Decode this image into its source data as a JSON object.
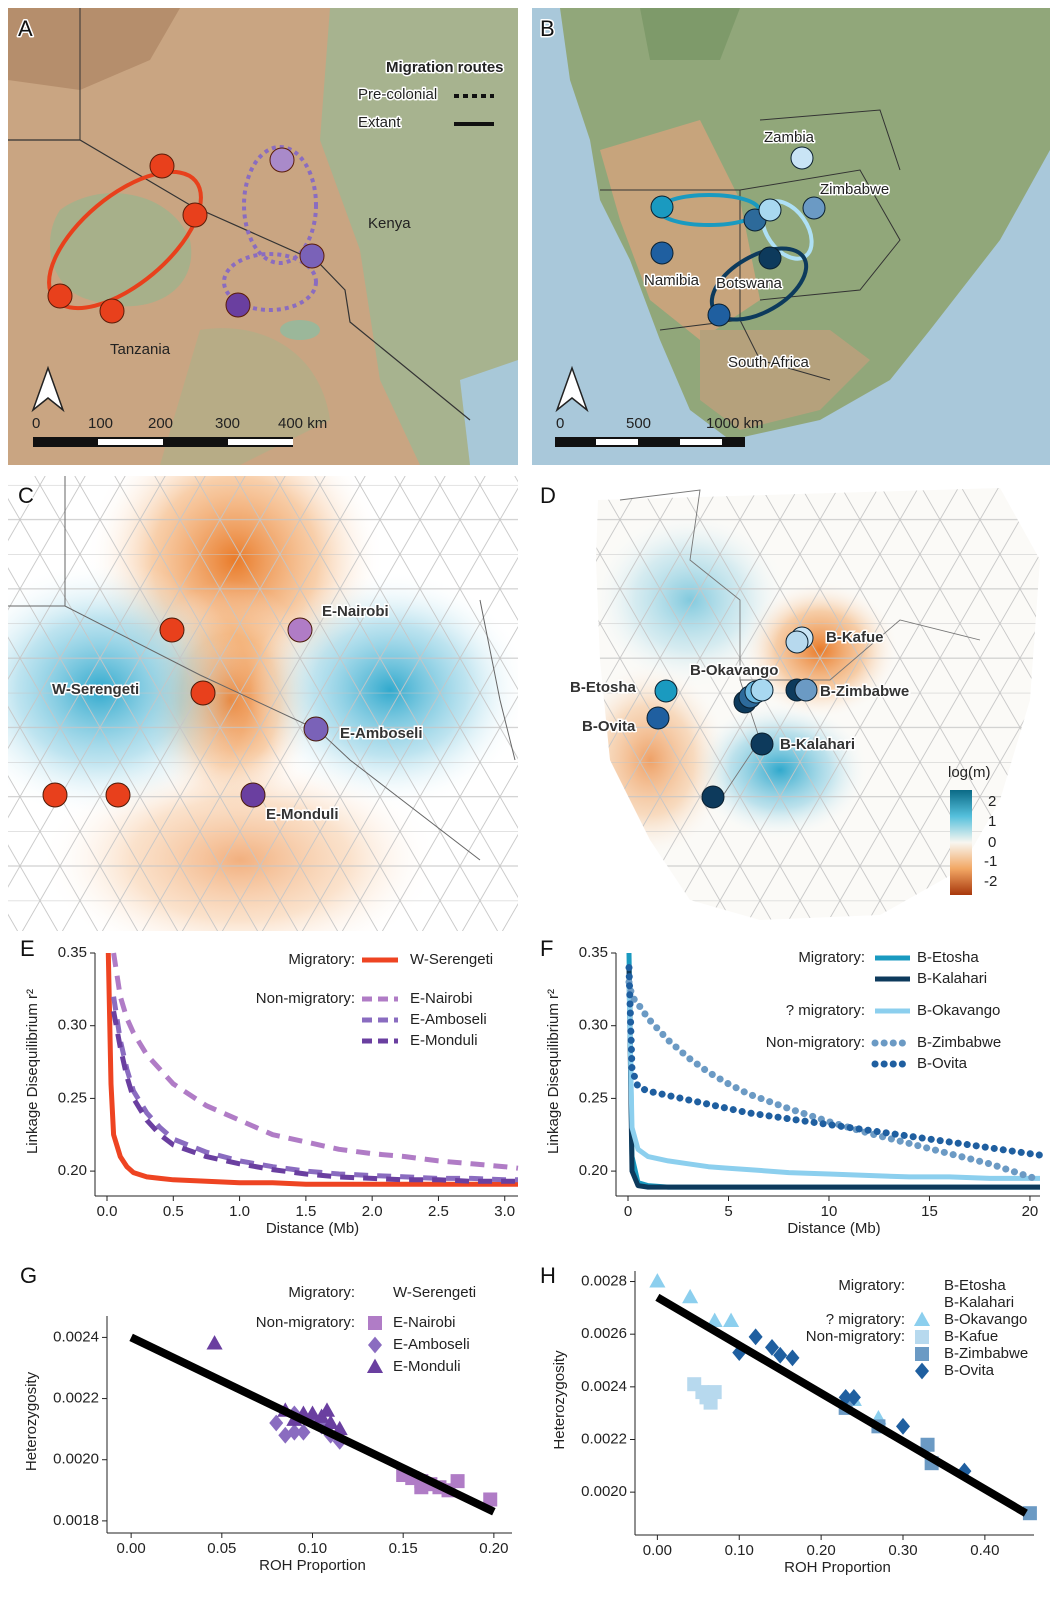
{
  "panel_labels": [
    "A",
    "B",
    "C",
    "D",
    "E",
    "F",
    "G",
    "H"
  ],
  "map_a": {
    "legend_title": "Migration routes",
    "legend_items": [
      "Pre-colonial",
      "Extant"
    ],
    "places": [
      "Kenya",
      "Tanzania"
    ],
    "scale_labels": [
      "0",
      "100",
      "200",
      "300",
      "400 km"
    ]
  },
  "map_b": {
    "places": [
      "Zambia",
      "Zimbabwe",
      "Namibia",
      "Botswana",
      "South Africa"
    ],
    "scale_labels": [
      "0",
      "500",
      "1000 km"
    ]
  },
  "map_c": {
    "sites": [
      "E-Nairobi",
      "W-Serengeti",
      "E-Amboseli",
      "E-Monduli"
    ]
  },
  "map_d": {
    "sites": [
      "B-Kafue",
      "B-Okavango",
      "B-Zimbabwe",
      "B-Etosha",
      "B-Ovita",
      "B-Kalahari"
    ],
    "legend_title": "log(m)",
    "legend_ticks": [
      "2",
      "1",
      "0",
      "-1",
      "-2"
    ]
  },
  "chart_data": [
    {
      "type": "line",
      "xlabel": "Distance (Mb)",
      "ylabel": "Linkage Disequilibrium r²",
      "x": [
        0.01,
        0.03,
        0.05,
        0.1,
        0.15,
        0.2,
        0.3,
        0.4,
        0.5,
        0.75,
        1.0,
        1.25,
        1.5,
        1.75,
        2.0,
        2.25,
        2.5,
        2.75,
        3.0,
        3.1
      ],
      "xlim": [
        0,
        3.1
      ],
      "ylim": [
        0.187,
        0.35
      ],
      "xticks": [
        {
          "value": 0,
          "label": "0.0"
        },
        0.5,
        {
          "value": 1,
          "label": "1.0"
        },
        1.5,
        {
          "value": 2,
          "label": "2.0"
        },
        2.5,
        {
          "value": 3,
          "label": "3.0"
        }
      ],
      "yticks": [
        {
          "value": 0.2,
          "label": "0.20"
        },
        0.25,
        {
          "value": 0.3,
          "label": "0.30"
        },
        0.35
      ],
      "series": [
        {
          "name": "W-Serengeti",
          "group": "Migratory:",
          "color": "#ee4422",
          "linestyle": "solid",
          "values": [
            0.35,
            0.26,
            0.225,
            0.21,
            0.203,
            0.199,
            0.196,
            0.195,
            0.194,
            0.193,
            0.192,
            0.192,
            0.191,
            0.191,
            0.191,
            0.191,
            0.191,
            0.191,
            0.191,
            0.191
          ]
        },
        {
          "name": "E-Nairobi",
          "group": "Non-migratory:",
          "color": "#b07cc6",
          "linestyle": "dashed",
          "values": [
            null,
            null,
            0.35,
            0.32,
            0.305,
            0.295,
            0.28,
            0.27,
            0.26,
            0.245,
            0.235,
            0.225,
            0.22,
            0.215,
            0.212,
            0.21,
            0.207,
            0.205,
            0.203,
            0.202
          ]
        },
        {
          "name": "E-Amboseli",
          "color": "#8a6cc0",
          "linestyle": "dashed",
          "values": [
            null,
            null,
            0.32,
            0.29,
            0.27,
            0.255,
            0.24,
            0.23,
            0.222,
            0.213,
            0.207,
            0.203,
            0.2,
            0.198,
            0.197,
            0.196,
            0.195,
            0.195,
            0.194,
            0.194
          ]
        },
        {
          "name": "E-Monduli",
          "color": "#6a3fa0",
          "linestyle": "dashed",
          "values": [
            null,
            null,
            0.31,
            0.285,
            0.265,
            0.25,
            0.235,
            0.225,
            0.218,
            0.21,
            0.205,
            0.201,
            0.198,
            0.196,
            0.195,
            0.194,
            0.194,
            0.193,
            0.193,
            0.193
          ]
        }
      ]
    },
    {
      "type": "line",
      "xlabel": "Distance (Mb)",
      "ylabel": "Linkage Disequilibrium r²",
      "x": [
        0.05,
        0.2,
        0.5,
        1,
        2,
        3,
        4,
        5,
        6,
        8,
        10,
        12,
        14,
        16,
        18,
        20,
        20.5
      ],
      "xlim": [
        0,
        20.5
      ],
      "ylim": [
        0.187,
        0.35
      ],
      "xticks": [
        0,
        5,
        10,
        15,
        20
      ],
      "yticks": [
        {
          "value": 0.2,
          "label": "0.20"
        },
        0.25,
        {
          "value": 0.3,
          "label": "0.30"
        },
        0.35
      ],
      "series": [
        {
          "name": "B-Etosha",
          "group": "Migratory:",
          "color": "#1a9ac0",
          "linestyle": "solid",
          "values": [
            0.35,
            0.21,
            0.192,
            0.19,
            0.189,
            0.189,
            0.189,
            0.189,
            0.189,
            0.189,
            0.189,
            0.189,
            0.189,
            0.189,
            0.189,
            0.189,
            0.189
          ]
        },
        {
          "name": "B-Kalahari",
          "color": "#0d3a5c",
          "linestyle": "solid",
          "values": [
            0.34,
            0.2,
            0.19,
            0.189,
            0.189,
            0.189,
            0.189,
            0.189,
            0.189,
            0.189,
            0.189,
            0.189,
            0.189,
            0.189,
            0.189,
            0.189,
            0.189
          ]
        },
        {
          "name": "B-Okavango",
          "group": "? migratory:",
          "color": "#8ccfee",
          "linestyle": "solid",
          "values": [
            0.33,
            0.23,
            0.215,
            0.21,
            0.207,
            0.205,
            0.203,
            0.202,
            0.201,
            0.199,
            0.198,
            0.197,
            0.196,
            0.196,
            0.195,
            0.195,
            0.195
          ]
        },
        {
          "name": "B-Zimbabwe",
          "group": "Non-migratory:",
          "color": "#6b9ac4",
          "linestyle": "dotted",
          "values": [
            0.33,
            0.32,
            0.315,
            0.305,
            0.29,
            0.278,
            0.268,
            0.26,
            0.253,
            0.243,
            0.234,
            0.226,
            0.219,
            0.212,
            0.205,
            0.196,
            0.194
          ]
        },
        {
          "name": "B-Ovita",
          "color": "#1f5fa0",
          "linestyle": "dotted",
          "values": [
            0.34,
            0.27,
            0.258,
            0.255,
            0.252,
            0.249,
            0.246,
            0.243,
            0.24,
            0.236,
            0.232,
            0.228,
            0.224,
            0.22,
            0.216,
            0.212,
            0.211
          ]
        }
      ]
    },
    {
      "type": "scatter",
      "xlabel": "ROH Proportion",
      "ylabel": "Heterozygosity",
      "xlim": [
        -0.01,
        0.21
      ],
      "ylim": [
        0.00178,
        0.00247
      ],
      "xticks": [
        {
          "value": 0,
          "label": "0.00"
        },
        0.05,
        {
          "value": 0.1,
          "label": "0.10"
        },
        0.15,
        {
          "value": 0.2,
          "label": "0.20"
        }
      ],
      "yticks": [
        0.0018,
        {
          "value": 0.002,
          "label": "0.0020"
        },
        0.0022,
        0.0024
      ],
      "series": [
        {
          "name": "W-Serengeti",
          "group": "Migratory:",
          "color": "#ee4422",
          "marker": "circle",
          "x": [],
          "values": []
        },
        {
          "name": "E-Nairobi",
          "group": "Non-migratory:",
          "color": "#b07cc6",
          "marker": "square",
          "x": [
            0.15,
            0.155,
            0.16,
            0.165,
            0.17,
            0.175,
            0.18,
            0.198,
            0.16
          ],
          "values": [
            0.00195,
            0.00194,
            0.00193,
            0.00192,
            0.00191,
            0.0019,
            0.00193,
            0.00187,
            0.00191
          ]
        },
        {
          "name": "E-Amboseli",
          "color": "#8a6cc0",
          "marker": "diamond",
          "x": [
            0.08,
            0.085,
            0.09,
            0.095,
            0.1,
            0.105,
            0.11,
            0.115,
            0.09
          ],
          "values": [
            0.00212,
            0.00208,
            0.00215,
            0.00209,
            0.00213,
            0.00211,
            0.00208,
            0.00206,
            0.00209
          ]
        },
        {
          "name": "E-Monduli",
          "color": "#6a3fa0",
          "marker": "triangle",
          "x": [
            0.046,
            0.085,
            0.09,
            0.095,
            0.1,
            0.105,
            0.11,
            0.115,
            0.108
          ],
          "values": [
            0.00238,
            0.00216,
            0.00213,
            0.00215,
            0.00215,
            0.00214,
            0.00212,
            0.0021,
            0.00216
          ]
        }
      ],
      "trend_line": {
        "color": "#000000",
        "x": [
          0,
          0.2
        ],
        "values": [
          0.0024,
          0.00183
        ]
      }
    },
    {
      "type": "scatter",
      "xlabel": "ROH Proportion",
      "ylabel": "Heterozygosity",
      "xlim": [
        -0.02,
        0.46
      ],
      "ylim": [
        0.00186,
        0.00284
      ],
      "xticks": [
        {
          "value": 0,
          "label": "0.00"
        },
        {
          "value": 0.1,
          "label": "0.10"
        },
        {
          "value": 0.2,
          "label": "0.20"
        },
        {
          "value": 0.3,
          "label": "0.30"
        },
        {
          "value": 0.4,
          "label": "0.40"
        }
      ],
      "yticks": [
        {
          "value": 0.002,
          "label": "0.0020"
        },
        0.0022,
        0.0024,
        0.0026,
        0.0028
      ],
      "series": [
        {
          "name": "B-Etosha",
          "group": "Migratory:",
          "color": "#1a9ac0",
          "marker": "circle",
          "x": [],
          "values": []
        },
        {
          "name": "B-Kalahari",
          "color": "#0d3a5c",
          "marker": "circle",
          "x": [],
          "values": []
        },
        {
          "name": "B-Okavango",
          "group": "? migratory:",
          "color": "#8ccfee",
          "marker": "triangle",
          "x": [
            0.0,
            0.04,
            0.07,
            0.09,
            0.24,
            0.27
          ],
          "values": [
            0.0028,
            0.00274,
            0.00265,
            0.00265,
            0.00235,
            0.00228
          ]
        },
        {
          "name": "B-Kafue",
          "group": "Non-migratory:",
          "color": "#b7d9ee",
          "marker": "square",
          "x": [
            0.045,
            0.055,
            0.065,
            0.07,
            0.06
          ],
          "values": [
            0.00241,
            0.00238,
            0.00234,
            0.00238,
            0.00236
          ]
        },
        {
          "name": "B-Zimbabwe",
          "color": "#6b9ac4",
          "marker": "square",
          "x": [
            0.23,
            0.27,
            0.33,
            0.335,
            0.455
          ],
          "values": [
            0.00232,
            0.00225,
            0.00218,
            0.00211,
            0.00192
          ]
        },
        {
          "name": "B-Ovita",
          "color": "#1f5fa0",
          "marker": "diamond",
          "x": [
            0.1,
            0.12,
            0.14,
            0.15,
            0.165,
            0.23,
            0.24,
            0.3,
            0.375
          ],
          "values": [
            0.00253,
            0.00259,
            0.00255,
            0.00252,
            0.00251,
            0.00236,
            0.00236,
            0.00225,
            0.00208
          ]
        }
      ],
      "trend_line": {
        "color": "#000000",
        "x": [
          0,
          0.45
        ],
        "values": [
          0.00274,
          0.00192
        ]
      }
    }
  ]
}
